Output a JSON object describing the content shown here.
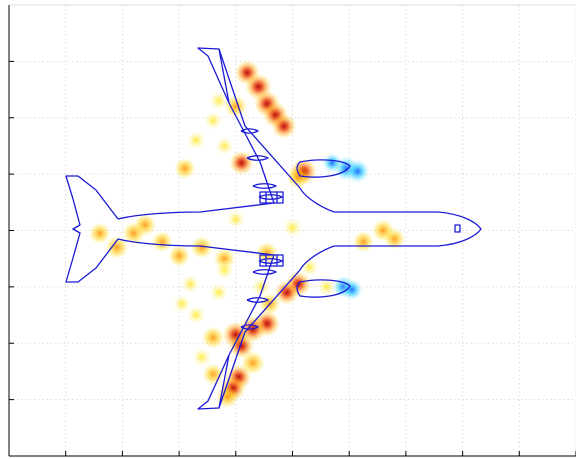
{
  "chart_data": {
    "type": "heatmap",
    "title": "",
    "xlabel": "",
    "ylabel": "",
    "grid": true,
    "legend": "none",
    "xlim": [
      0,
      10
    ],
    "ylim": [
      0,
      8
    ],
    "xticks": [
      1,
      2,
      3,
      4,
      5,
      6,
      7,
      8,
      9,
      10
    ],
    "yticks": [
      1,
      2,
      3,
      4,
      5,
      6,
      7
    ],
    "overlay": "aircraft-planform-outline",
    "colors": {
      "outline": "#1a1ad6",
      "grid": "#c8c8c8",
      "axes": "#000000",
      "hot": "#b40000",
      "warm": "#ff8a00",
      "mild": "#ffe400",
      "cool": "#1560ff",
      "cold": "#22ccff"
    },
    "hotspots": [
      [
        4.2,
        6.8,
        0.8
      ],
      [
        4.4,
        6.55,
        0.95
      ],
      [
        4.55,
        6.25,
        0.9
      ],
      [
        4.7,
        6.05,
        0.85
      ],
      [
        4.85,
        5.85,
        0.8
      ],
      [
        4.1,
        5.2,
        0.75
      ],
      [
        5.2,
        5.05,
        0.9
      ],
      [
        5.1,
        4.95,
        0.65
      ],
      [
        4.0,
        6.2,
        0.55
      ],
      [
        3.7,
        6.3,
        0.4
      ],
      [
        3.6,
        5.95,
        0.35
      ],
      [
        3.3,
        5.6,
        0.4
      ],
      [
        3.1,
        5.1,
        0.45
      ],
      [
        3.8,
        5.5,
        0.35
      ],
      [
        2.4,
        4.1,
        0.55
      ],
      [
        2.2,
        3.95,
        0.55
      ],
      [
        1.9,
        3.7,
        0.6
      ],
      [
        2.7,
        3.8,
        0.45
      ],
      [
        3.0,
        3.55,
        0.5
      ],
      [
        3.4,
        3.7,
        0.55
      ],
      [
        3.8,
        3.5,
        0.45
      ],
      [
        1.6,
        3.95,
        0.45
      ],
      [
        4.0,
        4.2,
        0.35
      ],
      [
        3.8,
        3.3,
        0.4
      ],
      [
        5.0,
        4.05,
        0.4
      ],
      [
        4.55,
        3.6,
        0.55
      ],
      [
        6.6,
        4.0,
        0.55
      ],
      [
        6.8,
        3.85,
        0.45
      ],
      [
        6.25,
        3.8,
        0.45
      ],
      [
        5.1,
        3.05,
        0.85
      ],
      [
        4.9,
        2.9,
        0.75
      ],
      [
        4.55,
        2.35,
        0.9
      ],
      [
        4.3,
        2.25,
        0.95
      ],
      [
        4.0,
        2.15,
        0.95
      ],
      [
        4.1,
        1.95,
        0.8
      ],
      [
        4.3,
        1.65,
        0.65
      ],
      [
        4.05,
        1.4,
        0.85
      ],
      [
        3.95,
        1.2,
        0.8
      ],
      [
        3.85,
        1.05,
        0.55
      ],
      [
        3.6,
        2.1,
        0.55
      ],
      [
        3.4,
        1.75,
        0.4
      ],
      [
        3.3,
        2.5,
        0.4
      ],
      [
        3.7,
        2.9,
        0.35
      ],
      [
        3.05,
        2.7,
        0.3
      ],
      [
        3.2,
        3.05,
        0.35
      ],
      [
        5.3,
        3.35,
        0.4
      ],
      [
        5.6,
        3.0,
        0.4
      ],
      [
        4.45,
        3.0,
        0.4
      ],
      [
        4.6,
        2.7,
        0.45
      ],
      [
        3.6,
        1.45,
        0.45
      ]
    ],
    "coldspots": [
      [
        5.95,
        5.1,
        0.9
      ],
      [
        6.15,
        5.05,
        0.75
      ],
      [
        5.7,
        5.2,
        0.4
      ],
      [
        5.9,
        3.0,
        0.65
      ],
      [
        6.05,
        2.95,
        0.55
      ]
    ]
  }
}
